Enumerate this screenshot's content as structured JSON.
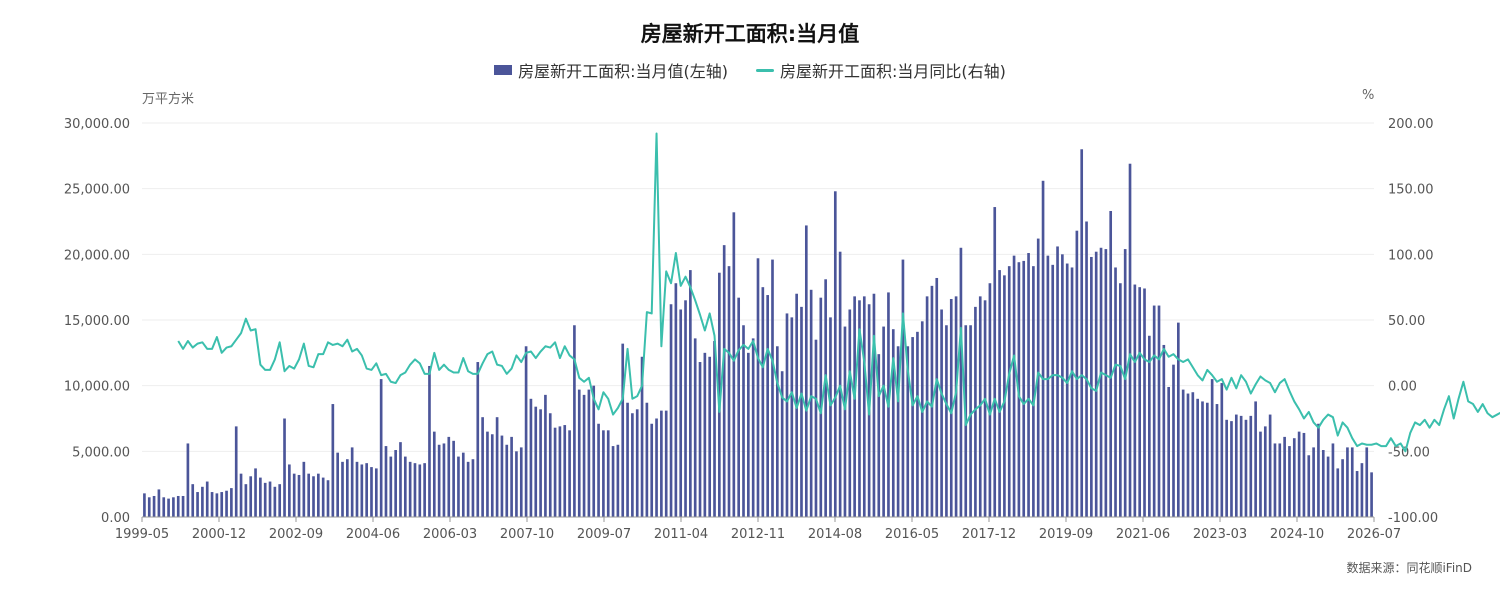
{
  "title": "房屋新开工面积:当月值",
  "legend": {
    "bar": "房屋新开工面积:当月值(左轴)",
    "line": "房屋新开工面积:当月同比(右轴)"
  },
  "units": {
    "left": "万平方米",
    "right": "%"
  },
  "source": "数据来源：同花顺iFinD",
  "colors": {
    "bar": "#4b5599",
    "line": "#3bbfad",
    "grid": "#eeeeee"
  },
  "chart_data": {
    "type": "bar",
    "left_axis": {
      "ylim": [
        0,
        30000
      ],
      "ticks": [
        "0.00",
        "5,000.00",
        "10,000.00",
        "15,000.00",
        "20,000.00",
        "25,000.00",
        "30,000.00"
      ]
    },
    "right_axis": {
      "ylim": [
        -100,
        200
      ],
      "ticks": [
        "-100.00",
        "-50.00",
        "0.00",
        "50.00",
        "100.00",
        "150.00",
        "200.00"
      ]
    },
    "x_ticks": [
      "1999-05",
      "2000-12",
      "2002-09",
      "2004-06",
      "2006-03",
      "2007-10",
      "2009-07",
      "2011-04",
      "2012-11",
      "2014-08",
      "2016-05",
      "2017-12",
      "2019-09",
      "2021-06",
      "2023-03",
      "2024-10",
      "2026-07"
    ],
    "series": [
      {
        "name": "房屋新开工面积:当月值(左轴)",
        "type": "bar",
        "axis": "left",
        "values": [
          1800,
          1500,
          1600,
          2100,
          1500,
          1400,
          1500,
          1600,
          1600,
          5600,
          2500,
          1900,
          2300,
          2700,
          1900,
          1800,
          1900,
          2000,
          2200,
          6900,
          3300,
          2500,
          3100,
          3700,
          3000,
          2600,
          2700,
          2300,
          2500,
          7500,
          4000,
          3300,
          3200,
          4200,
          3300,
          3100,
          3300,
          3000,
          2800,
          8600,
          4900,
          4200,
          4400,
          5300,
          4200,
          4000,
          4100,
          3800,
          3700,
          10500,
          5400,
          4600,
          5100,
          5700,
          4600,
          4200,
          4100,
          4000,
          4100,
          11500,
          6500,
          5500,
          5600,
          6100,
          5800,
          4600,
          4900,
          4200,
          4400,
          11800,
          7600,
          6500,
          6300,
          7600,
          6200,
          5500,
          6100,
          5000,
          5300,
          13000,
          9000,
          8400,
          8200,
          9300,
          7900,
          6800,
          6900,
          7000,
          6600,
          14600,
          9700,
          9300,
          9700,
          10000,
          7100,
          6600,
          6600,
          5400,
          5500,
          13200,
          8700,
          7900,
          8200,
          12200,
          8700,
          7100,
          7500,
          8100,
          8100,
          16200,
          17800,
          15800,
          16500,
          18800,
          13600,
          11800,
          12500,
          12200,
          13400,
          18600,
          20700,
          19100,
          23200,
          16700,
          14600,
          12500,
          13600,
          19700,
          17500,
          16900,
          19600,
          13000,
          11100,
          15500,
          15200,
          17000,
          16000,
          22200,
          17300,
          13500,
          16700,
          18100,
          15200,
          24800,
          20200,
          14500,
          15800,
          16800,
          16500,
          16800,
          16200,
          17000,
          12400,
          14500,
          17100,
          14300,
          13000,
          19600,
          13000,
          13700,
          14100,
          14900,
          16800,
          17600,
          18200,
          15800,
          14600,
          16600,
          16800,
          20500,
          14600,
          14600,
          16000,
          16800,
          16500,
          17800,
          23600,
          18800,
          18400,
          19100,
          19900,
          19400,
          19500,
          20100,
          19100,
          21200,
          25600,
          19900,
          19200,
          20600,
          20000,
          19300,
          19000,
          21800,
          28000,
          22500,
          19800,
          20200,
          20500,
          20400,
          23300,
          19000,
          17800,
          20400,
          26900,
          17700,
          17500,
          17400,
          13800,
          16100,
          16100,
          13100,
          9900,
          11600,
          14800,
          9700,
          9400,
          9500,
          9000,
          8800,
          8700,
          10500,
          8600,
          10200,
          7400,
          7300,
          7800,
          7700,
          7400,
          7700,
          8800,
          6500,
          6900,
          7800,
          5600,
          5600,
          6100,
          5400,
          6000,
          6500,
          6400,
          4700,
          5300,
          7100,
          5100,
          4600,
          5600,
          3700,
          4400,
          5300,
          5300,
          3500,
          4100,
          5300,
          3400
        ]
      },
      {
        "name": "房屋新开工面积:当月同比(右轴)",
        "type": "line",
        "axis": "right",
        "start_index": 7,
        "values": [
          34,
          28,
          34,
          29,
          32,
          33,
          28,
          28,
          37,
          25,
          29,
          30,
          35,
          40,
          51,
          42,
          43,
          16,
          12,
          12,
          20,
          33,
          11,
          15,
          13,
          20,
          32,
          15,
          14,
          24,
          24,
          33,
          31,
          32,
          30,
          35,
          26,
          28,
          23,
          13,
          12,
          17,
          8,
          9,
          3,
          2,
          8,
          10,
          16,
          20,
          17,
          9,
          9,
          25,
          12,
          16,
          12,
          10,
          10,
          21,
          11,
          9,
          9,
          17,
          24,
          26,
          16,
          15,
          9,
          13,
          23,
          18,
          25,
          26,
          21,
          26,
          30,
          29,
          33,
          21,
          30,
          23,
          20,
          6,
          3,
          6,
          -10,
          -18,
          -5,
          -10,
          -22,
          -17,
          -10,
          28,
          -10,
          -8,
          0,
          56,
          55,
          192,
          30,
          87,
          78,
          101,
          76,
          83,
          75,
          65,
          54,
          42,
          55,
          38,
          -20,
          28,
          25,
          19,
          27,
          31,
          28,
          34,
          21,
          14,
          28,
          19,
          2,
          -9,
          -12,
          -5,
          -17,
          -6,
          -19,
          -8,
          -10,
          -21,
          8,
          -15,
          -9,
          0,
          -18,
          11,
          -10,
          43,
          18,
          -22,
          38,
          -8,
          0,
          -16,
          21,
          -12,
          55,
          12,
          -15,
          -8,
          -20,
          -12,
          -16,
          5,
          -6,
          -14,
          -21,
          -5,
          44,
          -30,
          -22,
          -18,
          -15,
          -10,
          -22,
          -10,
          -20,
          -12,
          9,
          23,
          -8,
          -14,
          -10,
          -15,
          10,
          5,
          5,
          8,
          8,
          6,
          2,
          11,
          5,
          8,
          5,
          -2,
          -4,
          10,
          8,
          6,
          16,
          15,
          5,
          24,
          18,
          25,
          20,
          18,
          23,
          20,
          28,
          22,
          24,
          20,
          18,
          20,
          14,
          8,
          4,
          12,
          8,
          3,
          5,
          -3,
          6,
          -2,
          8,
          3,
          -6,
          1,
          7,
          4,
          2,
          -5,
          2,
          5,
          -4,
          -12,
          -18,
          -25,
          -20,
          -28,
          -32,
          -26,
          -22,
          -24,
          -38,
          -28,
          -32,
          -40,
          -46,
          -44,
          -45,
          -45,
          -44,
          -46,
          -46,
          -40,
          -46,
          -44,
          -50,
          -36,
          -28,
          -30,
          -26,
          -32,
          -26,
          -30,
          -18,
          -8,
          -25,
          -10,
          3,
          -12,
          -14,
          -20,
          -14,
          -21,
          -24,
          -22,
          -20,
          -16,
          -18,
          -22,
          -21,
          -18,
          -12,
          -16,
          -18,
          -29,
          -27,
          -20,
          -18,
          -26,
          -24,
          -25,
          -28
        ]
      }
    ]
  }
}
